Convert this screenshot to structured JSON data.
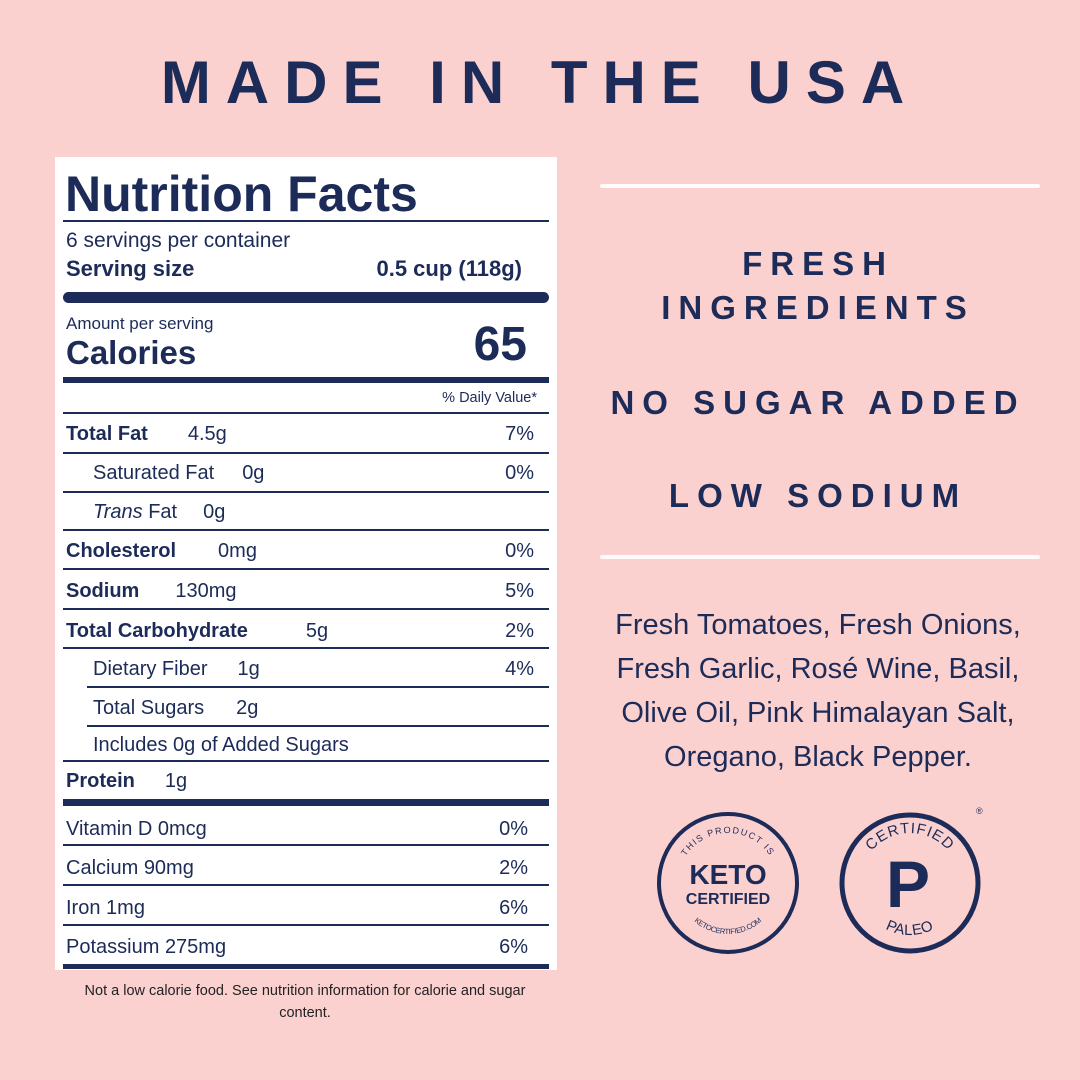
{
  "title": "MADE IN THE USA",
  "nutrition": {
    "heading": "Nutrition Facts",
    "servings": "6 servings per container",
    "serving_size_label": "Serving size",
    "serving_size": "0.5 cup (118g)",
    "amount_per_serving": "Amount per serving",
    "calories_label": "Calories",
    "calories": 65,
    "daily_value_header": "% Daily Value*",
    "rows": [
      {
        "label": "Total Fat",
        "amount": "4.5g",
        "dv": "7%"
      },
      {
        "label": "Saturated Fat",
        "amount": "0g",
        "dv": "0%"
      },
      {
        "italic": "Trans",
        "label": "Fat",
        "amount": "0g"
      },
      {
        "label": "Cholesterol",
        "amount": "0mg",
        "dv": "0%"
      },
      {
        "label": "Sodium",
        "amount": "130mg",
        "dv": "5%"
      },
      {
        "label": "Total Carbohydrate",
        "amount": "5g",
        "dv": "2%"
      },
      {
        "label": "Dietary Fiber",
        "amount": "1g",
        "dv": "4%"
      },
      {
        "label": "Total Sugars",
        "amount": "2g"
      },
      {
        "label": "Includes 0g of Added Sugars"
      },
      {
        "label": "Protein",
        "amount": "1g"
      }
    ],
    "minerals": [
      {
        "label": "Vitamin D",
        "amount": "0mcg",
        "dv": "0%"
      },
      {
        "label": "Calcium",
        "amount": "90mg",
        "dv": "2%"
      },
      {
        "label": "Iron",
        "amount": "1mg",
        "dv": "6%"
      },
      {
        "label": "Potassium",
        "amount": "275mg",
        "dv": "6%"
      }
    ],
    "footnote": "Not a low calorie food. See nutrition information for calorie and sugar content."
  },
  "claims": [
    "FRESH INGREDIENTS",
    "NO SUGAR ADDED",
    "LOW SODIUM"
  ],
  "ingredients": "Fresh Tomatoes, Fresh Onions, Fresh Garlic, Rosé Wine, Basil, Olive Oil, Pink Himalayan Salt, Oregano, Black Pepper.",
  "badges": {
    "keto": {
      "top": "THIS PRODUCT IS",
      "main": "KETO",
      "sub": "CERTIFIED",
      "bottom": "KETOCERTIFIED.COM"
    },
    "paleo": {
      "top": "CERTIFIED",
      "main": "P",
      "bottom": "PALEO",
      "mark": "®"
    }
  }
}
